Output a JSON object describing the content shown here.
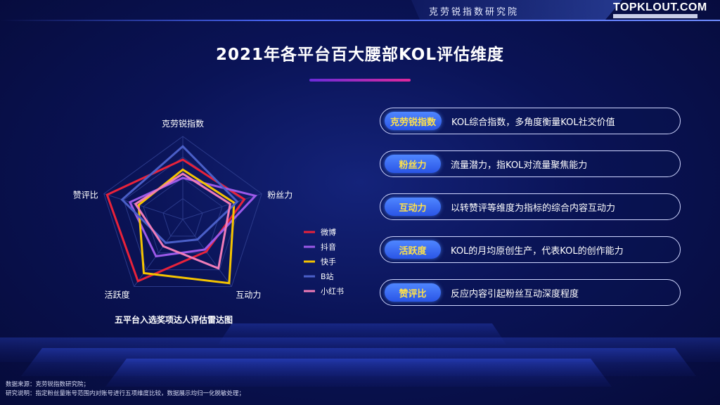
{
  "header": {
    "institute": "克劳锐指数研究院",
    "brand": "TOPKLOUT.COM"
  },
  "title": "2021年各平台百大腰部KOL评估维度",
  "chart_caption": "五平台入选奖项达人评估雷达图",
  "chart_data": {
    "type": "radar",
    "axes": [
      "克劳锐指数",
      "粉丝力",
      "互动力",
      "活跃度",
      "赞评比"
    ],
    "range": [
      0,
      1
    ],
    "series": [
      {
        "name": "微博",
        "color": "#e8223a",
        "values": [
          0.72,
          0.78,
          0.48,
          0.92,
          0.96
        ]
      },
      {
        "name": "抖音",
        "color": "#9b59e8",
        "values": [
          0.5,
          0.92,
          0.45,
          0.55,
          0.67
        ]
      },
      {
        "name": "快手",
        "color": "#f5c400",
        "values": [
          0.6,
          0.65,
          0.95,
          0.8,
          0.56
        ]
      },
      {
        "name": "B站",
        "color": "#4a5fc8",
        "values": [
          0.88,
          0.69,
          0.3,
          0.35,
          0.77
        ]
      },
      {
        "name": "小红书",
        "color": "#f07cb8",
        "values": [
          0.55,
          0.6,
          0.73,
          0.4,
          0.6
        ]
      }
    ],
    "legend_position": "right"
  },
  "dimensions": [
    {
      "label": "克劳锐指数",
      "desc": "KOL综合指数，多角度衡量KOL社交价值"
    },
    {
      "label": "粉丝力",
      "desc": "流量潜力，指KOL对流量聚焦能力"
    },
    {
      "label": "互动力",
      "desc": "以转赞评等维度为指标的综合内容互动力"
    },
    {
      "label": "活跃度",
      "desc": "KOL的月均原创生产，代表KOL的创作能力"
    },
    {
      "label": "赞评比",
      "desc": "反应内容引起粉丝互动深度程度"
    }
  ],
  "footer": {
    "source": "数据来源：克劳锐指数研究院；",
    "note": "研究说明：指定粉丝量账号范围内对账号进行五项维度比较，数据展示均归一化脱敏处理；"
  }
}
